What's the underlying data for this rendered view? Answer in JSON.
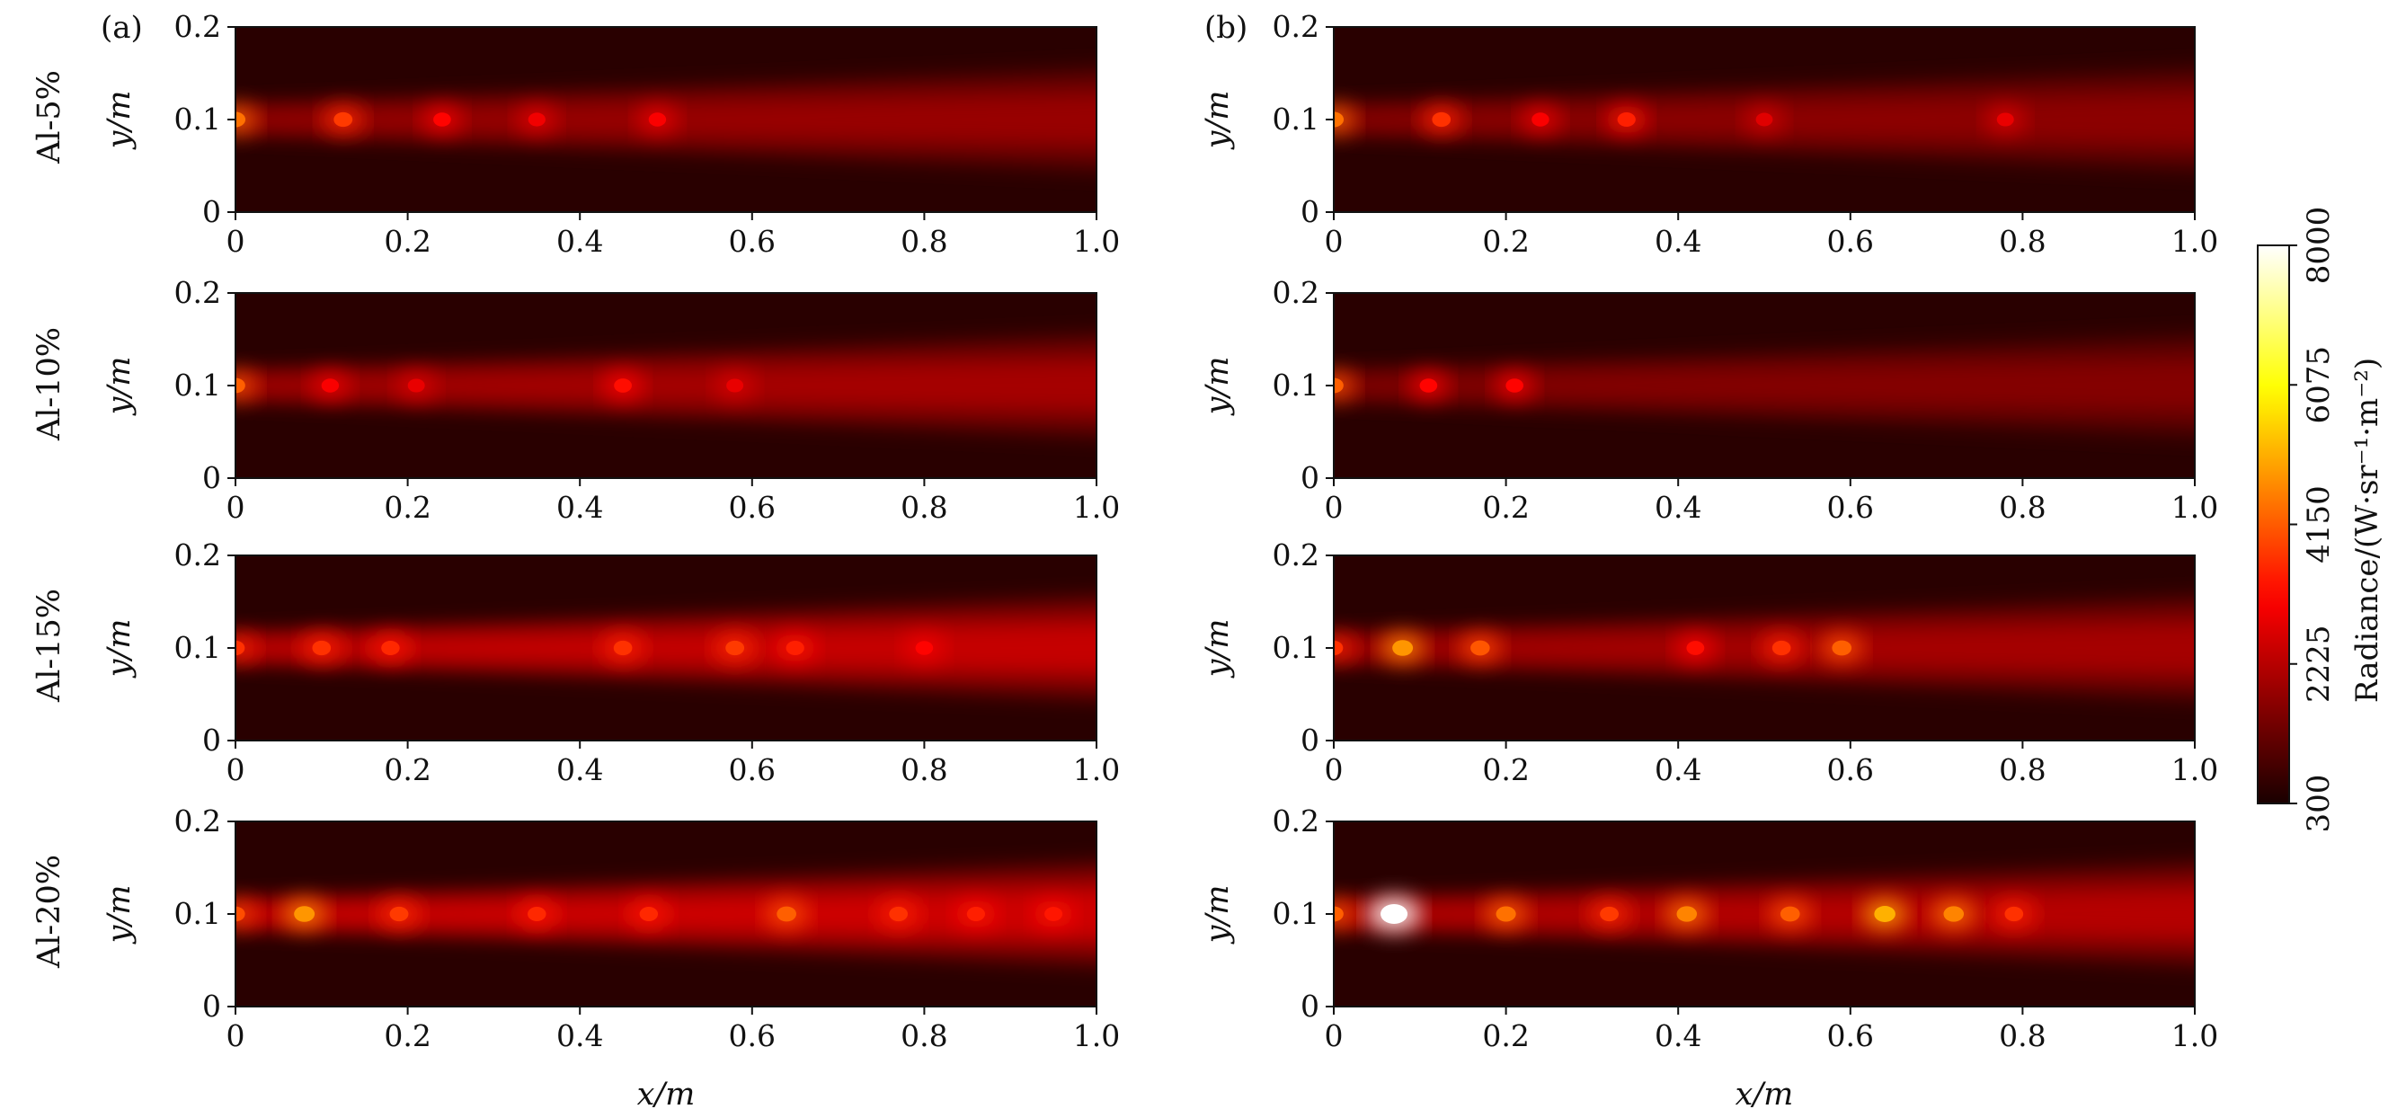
{
  "chart_data": {
    "type": "heatmap",
    "title": "",
    "colormap": "hot",
    "panel_labels": [
      "(a)",
      "(b)"
    ],
    "row_labels": [
      "Al-5%",
      "Al-10%",
      "Al-15%",
      "Al-20%"
    ],
    "xlabel": "x/m",
    "ylabel": "y/m",
    "xlim": [
      0,
      1.0
    ],
    "ylim": [
      0,
      0.2
    ],
    "x_ticks": [
      "0",
      "0.2",
      "0.4",
      "0.6",
      "0.8",
      "1.0"
    ],
    "y_ticks": [
      "0",
      "0.1",
      "0.2"
    ],
    "colorbar": {
      "label": "Radiance/(W·sr⁻¹·m⁻²)",
      "min": 300,
      "max": 8000,
      "ticks": [
        "300",
        "2225",
        "4150",
        "6075",
        "8000"
      ]
    },
    "background_radiance": 480,
    "panels": [
      {
        "column": "(a)",
        "row": "Al-5%",
        "plume_level": 1850,
        "hotspots": [
          [
            0.0,
            4200
          ],
          [
            0.125,
            3600
          ],
          [
            0.24,
            3000
          ],
          [
            0.35,
            2800
          ],
          [
            0.49,
            2900
          ]
        ]
      },
      {
        "column": "(b)",
        "row": "Al-5%",
        "plume_level": 1700,
        "hotspots": [
          [
            0.0,
            4200
          ],
          [
            0.125,
            3500
          ],
          [
            0.24,
            2900
          ],
          [
            0.34,
            3300
          ],
          [
            0.5,
            2600
          ],
          [
            0.78,
            2700
          ]
        ]
      },
      {
        "column": "(a)",
        "row": "Al-10%",
        "plume_level": 2000,
        "hotspots": [
          [
            0.0,
            4000
          ],
          [
            0.11,
            2900
          ],
          [
            0.21,
            2700
          ],
          [
            0.45,
            3100
          ],
          [
            0.58,
            2700
          ]
        ]
      },
      {
        "column": "(b)",
        "row": "Al-10%",
        "plume_level": 1600,
        "hotspots": [
          [
            0.0,
            4000
          ],
          [
            0.11,
            3000
          ],
          [
            0.21,
            3000
          ]
        ]
      },
      {
        "column": "(a)",
        "row": "Al-15%",
        "plume_level": 2400,
        "hotspots": [
          [
            0.0,
            3500
          ],
          [
            0.1,
            3500
          ],
          [
            0.18,
            3400
          ],
          [
            0.45,
            3500
          ],
          [
            0.58,
            3600
          ],
          [
            0.65,
            3300
          ],
          [
            0.8,
            3000
          ]
        ]
      },
      {
        "column": "(b)",
        "row": "Al-15%",
        "plume_level": 2000,
        "hotspots": [
          [
            0.0,
            3500
          ],
          [
            0.08,
            4600
          ],
          [
            0.17,
            3900
          ],
          [
            0.42,
            3100
          ],
          [
            0.52,
            3500
          ],
          [
            0.59,
            4000
          ]
        ]
      },
      {
        "column": "(a)",
        "row": "Al-20%",
        "plume_level": 2500,
        "hotspots": [
          [
            0.0,
            3800
          ],
          [
            0.08,
            4600
          ],
          [
            0.19,
            3600
          ],
          [
            0.35,
            3400
          ],
          [
            0.48,
            3400
          ],
          [
            0.64,
            4000
          ],
          [
            0.77,
            3500
          ],
          [
            0.86,
            3300
          ],
          [
            0.95,
            3200
          ]
        ]
      },
      {
        "column": "(b)",
        "row": "Al-20%",
        "plume_level": 2200,
        "hotspots": [
          [
            0.0,
            4000
          ],
          [
            0.07,
            8000
          ],
          [
            0.2,
            4200
          ],
          [
            0.32,
            3600
          ],
          [
            0.41,
            4400
          ],
          [
            0.53,
            4000
          ],
          [
            0.64,
            4900
          ],
          [
            0.72,
            4400
          ],
          [
            0.79,
            3500
          ]
        ]
      }
    ]
  }
}
